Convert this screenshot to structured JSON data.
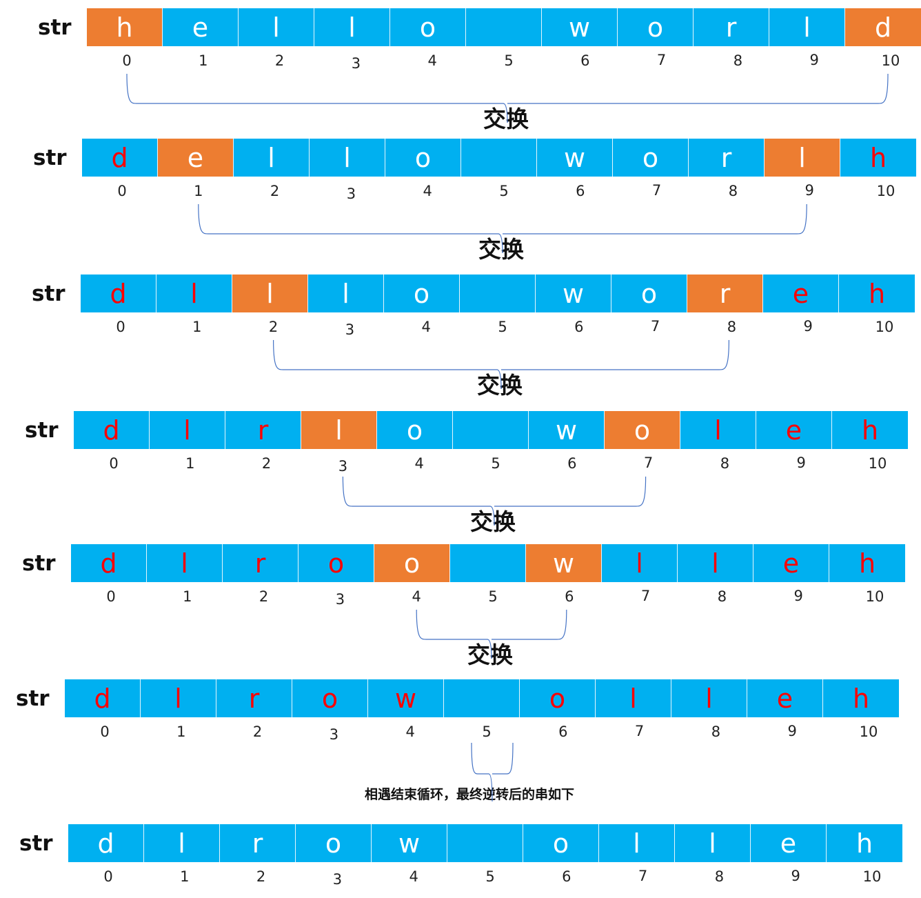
{
  "array_label": "str",
  "indices": [
    "0",
    "1",
    "2",
    "3",
    "4",
    "5",
    "6",
    "7",
    "8",
    "9",
    "10"
  ],
  "swap_label": "交换",
  "meet_label": "相遇结束循环，最终逆转后的串如下",
  "colors": {
    "cell": "#00B0F0",
    "highlight": "#ED7D31",
    "moved_text": "#FF0000",
    "text": "#FFFFFF",
    "brace": "#4472C4"
  },
  "rows": [
    {
      "chars": [
        "h",
        "e",
        "l",
        "l",
        "o",
        " ",
        "w",
        "o",
        "r",
        "l",
        "d"
      ],
      "highlight": [
        0,
        10
      ],
      "red": []
    },
    {
      "chars": [
        "d",
        "e",
        "l",
        "l",
        "o",
        " ",
        "w",
        "o",
        "r",
        "l",
        "h"
      ],
      "highlight": [
        1,
        9
      ],
      "red": [
        0,
        10
      ]
    },
    {
      "chars": [
        "d",
        "l",
        "l",
        "l",
        "o",
        " ",
        "w",
        "o",
        "r",
        "e",
        "h"
      ],
      "highlight": [
        2,
        8
      ],
      "red": [
        0,
        1,
        9,
        10
      ]
    },
    {
      "chars": [
        "d",
        "l",
        "r",
        "l",
        "o",
        " ",
        "w",
        "o",
        "l",
        "e",
        "h"
      ],
      "highlight": [
        3,
        7
      ],
      "red": [
        0,
        1,
        2,
        8,
        9,
        10
      ]
    },
    {
      "chars": [
        "d",
        "l",
        "r",
        "o",
        "o",
        " ",
        "w",
        "l",
        "l",
        "e",
        "h"
      ],
      "highlight": [
        4,
        6
      ],
      "red": [
        0,
        1,
        2,
        3,
        7,
        8,
        9,
        10
      ]
    },
    {
      "chars": [
        "d",
        "l",
        "r",
        "o",
        "w",
        " ",
        "o",
        "l",
        "l",
        "e",
        "h"
      ],
      "highlight": [],
      "red": [
        0,
        1,
        2,
        3,
        4,
        6,
        7,
        8,
        9,
        10
      ]
    },
    {
      "chars": [
        "d",
        "l",
        "r",
        "o",
        "w",
        " ",
        "o",
        "l",
        "l",
        "e",
        "h"
      ],
      "highlight": [],
      "red": []
    }
  ]
}
